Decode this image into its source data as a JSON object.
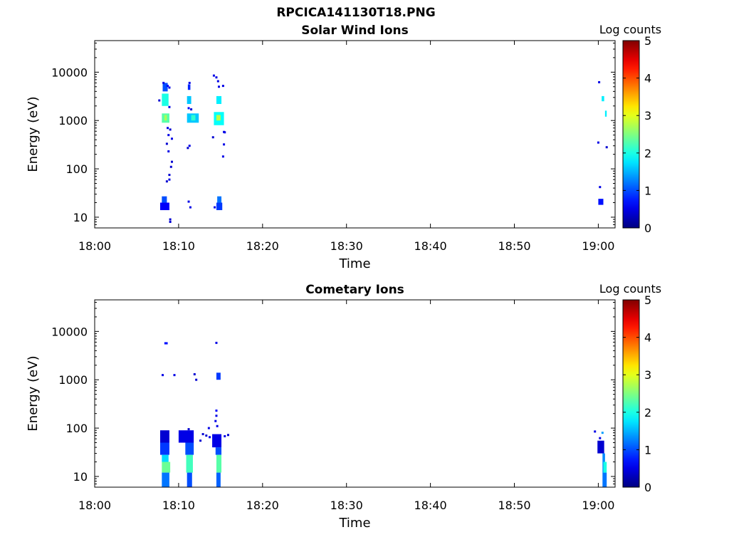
{
  "figure": {
    "title": "RPCICA141130T18.PNG"
  },
  "chart_data": [
    {
      "type": "heatmap",
      "title": "Solar Wind Ions",
      "xlabel": "Time",
      "ylabel": "Energy (eV)",
      "x_ticks": [
        "18:00",
        "18:10",
        "18:20",
        "18:30",
        "18:40",
        "18:50",
        "19:00"
      ],
      "xlim": [
        "18:00",
        "19:02"
      ],
      "y_scale": "log",
      "y_ticks": [
        10,
        100,
        1000,
        10000
      ],
      "y_tick_labels": [
        "10",
        "100",
        "1000",
        "10000"
      ],
      "ylim": [
        6,
        45000
      ],
      "colorbar": {
        "label": "Log counts",
        "ticks": [
          "0",
          "1",
          "2",
          "3",
          "4",
          "5"
        ],
        "range": [
          0,
          5
        ],
        "colormap": "jet"
      },
      "blocks": [
        {
          "t0": 8.0,
          "t1": 8.8,
          "e0": 2000,
          "e1": 3600,
          "level": 2.0
        },
        {
          "t0": 8.1,
          "t1": 8.7,
          "e0": 4000,
          "e1": 6000,
          "level": 1.0
        },
        {
          "t0": 8.0,
          "t1": 8.9,
          "e0": 900,
          "e1": 1400,
          "level": 2.3
        },
        {
          "t0": 8.3,
          "t1": 8.6,
          "e0": 1000,
          "e1": 1300,
          "level": 2.7
        },
        {
          "t0": 7.8,
          "t1": 8.9,
          "e0": 14,
          "e1": 20,
          "level": 0.6
        },
        {
          "t0": 8.0,
          "t1": 8.6,
          "e0": 20,
          "e1": 27,
          "level": 1.0
        },
        {
          "t0": 11.0,
          "t1": 11.5,
          "e0": 2200,
          "e1": 3200,
          "level": 1.6
        },
        {
          "t0": 11.1,
          "t1": 11.4,
          "e0": 4300,
          "e1": 5600,
          "level": 0.8
        },
        {
          "t0": 11.0,
          "t1": 12.4,
          "e0": 900,
          "e1": 1400,
          "level": 1.6
        },
        {
          "t0": 11.5,
          "t1": 12.0,
          "e0": 1000,
          "e1": 1300,
          "level": 2.1
        },
        {
          "t0": 14.5,
          "t1": 15.1,
          "e0": 2200,
          "e1": 3200,
          "level": 1.8
        },
        {
          "t0": 14.2,
          "t1": 15.4,
          "e0": 800,
          "e1": 1500,
          "level": 1.9
        },
        {
          "t0": 14.5,
          "t1": 15.0,
          "e0": 1000,
          "e1": 1300,
          "level": 2.8
        },
        {
          "t0": 14.5,
          "t1": 15.2,
          "e0": 14,
          "e1": 20,
          "level": 0.9
        },
        {
          "t0": 14.6,
          "t1": 15.1,
          "e0": 20,
          "e1": 27,
          "level": 1.2
        },
        {
          "t0": 60.0,
          "t1": 60.6,
          "e0": 18,
          "e1": 24,
          "level": 0.7
        },
        {
          "t0": 60.4,
          "t1": 60.7,
          "e0": 2500,
          "e1": 3200,
          "level": 1.8
        },
        {
          "t0": 60.8,
          "t1": 61.0,
          "e0": 1200,
          "e1": 1600,
          "level": 1.8
        }
      ],
      "dots": [
        {
          "t": 8.2,
          "e": 6000,
          "level": 0.5
        },
        {
          "t": 8.7,
          "e": 5200,
          "level": 0.6
        },
        {
          "t": 8.9,
          "e": 4800,
          "level": 0.5
        },
        {
          "t": 7.7,
          "e": 2600,
          "level": 0.4
        },
        {
          "t": 8.9,
          "e": 1900,
          "level": 0.5
        },
        {
          "t": 8.7,
          "e": 700,
          "level": 0.5
        },
        {
          "t": 9.0,
          "e": 650,
          "level": 0.4
        },
        {
          "t": 8.8,
          "e": 500,
          "level": 0.5
        },
        {
          "t": 9.2,
          "e": 420,
          "level": 0.5
        },
        {
          "t": 8.6,
          "e": 330,
          "level": 0.4
        },
        {
          "t": 8.8,
          "e": 230,
          "level": 0.5
        },
        {
          "t": 9.2,
          "e": 140,
          "level": 0.4
        },
        {
          "t": 9.1,
          "e": 110,
          "level": 0.4
        },
        {
          "t": 8.9,
          "e": 75,
          "level": 0.4
        },
        {
          "t": 8.6,
          "e": 55,
          "level": 0.4
        },
        {
          "t": 8.9,
          "e": 60,
          "level": 0.5
        },
        {
          "t": 9.0,
          "e": 9,
          "level": 0.4
        },
        {
          "t": 9.0,
          "e": 8,
          "level": 0.4
        },
        {
          "t": 11.3,
          "e": 6000,
          "level": 0.5
        },
        {
          "t": 11.2,
          "e": 1800,
          "level": 0.6
        },
        {
          "t": 11.5,
          "e": 1700,
          "level": 0.4
        },
        {
          "t": 11.3,
          "e": 300,
          "level": 0.5
        },
        {
          "t": 11.1,
          "e": 270,
          "level": 0.4
        },
        {
          "t": 11.2,
          "e": 21,
          "level": 0.5
        },
        {
          "t": 11.4,
          "e": 16,
          "level": 0.5
        },
        {
          "t": 14.2,
          "e": 8500,
          "level": 0.5
        },
        {
          "t": 14.5,
          "e": 7800,
          "level": 0.5
        },
        {
          "t": 14.7,
          "e": 6500,
          "level": 0.5
        },
        {
          "t": 15.3,
          "e": 5200,
          "level": 0.5
        },
        {
          "t": 14.8,
          "e": 5000,
          "level": 0.5
        },
        {
          "t": 15.4,
          "e": 580,
          "level": 0.5
        },
        {
          "t": 15.5,
          "e": 570,
          "level": 0.5
        },
        {
          "t": 14.1,
          "e": 450,
          "level": 0.4
        },
        {
          "t": 15.4,
          "e": 320,
          "level": 0.5
        },
        {
          "t": 15.3,
          "e": 180,
          "level": 0.5
        },
        {
          "t": 14.3,
          "e": 16,
          "level": 0.5
        },
        {
          "t": 60.1,
          "e": 6200,
          "level": 0.5
        },
        {
          "t": 60.0,
          "e": 350,
          "level": 0.5
        },
        {
          "t": 60.2,
          "e": 42,
          "level": 0.5
        },
        {
          "t": 61.0,
          "e": 280,
          "level": 0.4
        }
      ]
    },
    {
      "type": "heatmap",
      "title": "Cometary Ions",
      "xlabel": "Time",
      "ylabel": "Energy (eV)",
      "x_ticks": [
        "18:00",
        "18:10",
        "18:20",
        "18:30",
        "18:40",
        "18:50",
        "19:00"
      ],
      "xlim": [
        "18:00",
        "19:02"
      ],
      "y_scale": "log",
      "y_ticks": [
        10,
        100,
        1000,
        10000
      ],
      "y_tick_labels": [
        "10",
        "100",
        "1000",
        "10000"
      ],
      "ylim": [
        6,
        45000
      ],
      "colorbar": {
        "label": "Log counts",
        "ticks": [
          "0",
          "1",
          "2",
          "3",
          "4",
          "5"
        ],
        "range": [
          0,
          5
        ],
        "colormap": "jet"
      },
      "blocks": [
        {
          "t0": 7.8,
          "t1": 8.9,
          "e0": 50,
          "e1": 90,
          "level": 0.4
        },
        {
          "t0": 7.8,
          "t1": 8.9,
          "e0": 28,
          "e1": 50,
          "level": 0.9
        },
        {
          "t0": 8.0,
          "t1": 8.8,
          "e0": 20,
          "e1": 28,
          "level": 1.7
        },
        {
          "t0": 8.0,
          "t1": 9.0,
          "e0": 12,
          "e1": 20,
          "level": 2.4
        },
        {
          "t0": 8.0,
          "t1": 8.9,
          "e0": 6,
          "e1": 12,
          "level": 1.2
        },
        {
          "t0": 8.3,
          "t1": 8.7,
          "e0": 5400,
          "e1": 6000,
          "level": 0.7
        },
        {
          "t0": 10.0,
          "t1": 11.8,
          "e0": 50,
          "e1": 90,
          "level": 0.5
        },
        {
          "t0": 10.8,
          "t1": 11.8,
          "e0": 28,
          "e1": 50,
          "level": 1.0
        },
        {
          "t0": 10.9,
          "t1": 11.7,
          "e0": 12,
          "e1": 28,
          "level": 2.2
        },
        {
          "t0": 11.0,
          "t1": 11.6,
          "e0": 6,
          "e1": 12,
          "level": 1.0
        },
        {
          "t0": 14.0,
          "t1": 15.1,
          "e0": 40,
          "e1": 75,
          "level": 0.5
        },
        {
          "t0": 14.4,
          "t1": 15.1,
          "e0": 28,
          "e1": 40,
          "level": 1.0
        },
        {
          "t0": 14.5,
          "t1": 15.1,
          "e0": 12,
          "e1": 28,
          "level": 2.3
        },
        {
          "t0": 14.5,
          "t1": 15.0,
          "e0": 6,
          "e1": 12,
          "level": 1.1
        },
        {
          "t0": 14.5,
          "t1": 15.0,
          "e0": 1000,
          "e1": 1400,
          "level": 0.9
        },
        {
          "t0": 59.9,
          "t1": 60.7,
          "e0": 30,
          "e1": 55,
          "level": 0.4
        },
        {
          "t0": 60.5,
          "t1": 60.8,
          "e0": 12,
          "e1": 30,
          "level": 1.3
        },
        {
          "t0": 60.5,
          "t1": 61.0,
          "e0": 6,
          "e1": 12,
          "level": 1.2
        },
        {
          "t0": 60.6,
          "t1": 61.0,
          "e0": 12,
          "e1": 20,
          "level": 2.0
        }
      ],
      "dots": [
        {
          "t": 8.1,
          "e": 1250,
          "level": 0.5
        },
        {
          "t": 9.5,
          "e": 1250,
          "level": 0.5
        },
        {
          "t": 11.9,
          "e": 1300,
          "level": 0.4
        },
        {
          "t": 12.1,
          "e": 1000,
          "level": 0.4
        },
        {
          "t": 14.5,
          "e": 5800,
          "level": 0.5
        },
        {
          "t": 14.5,
          "e": 230,
          "level": 0.6
        },
        {
          "t": 14.5,
          "e": 180,
          "level": 0.5
        },
        {
          "t": 14.4,
          "e": 140,
          "level": 0.5
        },
        {
          "t": 14.6,
          "e": 110,
          "level": 0.5
        },
        {
          "t": 13.6,
          "e": 100,
          "level": 0.5
        },
        {
          "t": 11.2,
          "e": 95,
          "level": 0.4
        },
        {
          "t": 12.9,
          "e": 75,
          "level": 0.4
        },
        {
          "t": 13.3,
          "e": 70,
          "level": 0.4
        },
        {
          "t": 13.7,
          "e": 65,
          "level": 0.5
        },
        {
          "t": 15.9,
          "e": 72,
          "level": 0.4
        },
        {
          "t": 15.5,
          "e": 68,
          "level": 0.5
        },
        {
          "t": 12.6,
          "e": 55,
          "level": 0.4
        },
        {
          "t": 59.6,
          "e": 85,
          "level": 0.5
        },
        {
          "t": 60.5,
          "e": 80,
          "level": 1.4
        },
        {
          "t": 60.2,
          "e": 62,
          "level": 0.5
        }
      ]
    }
  ]
}
